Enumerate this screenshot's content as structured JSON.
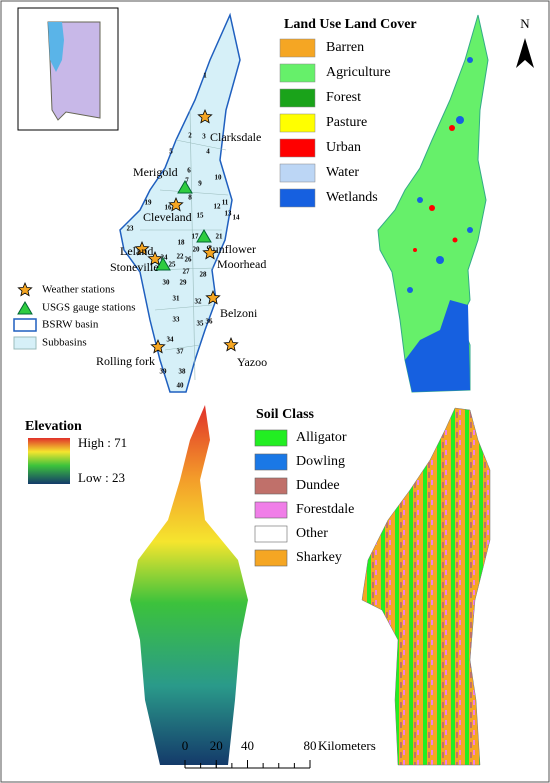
{
  "study_area": {
    "stations": [
      "Clarksdale",
      "Merigold",
      "Cleveland",
      "Sunflower",
      "Leland",
      "Stoneville",
      "Moorhead",
      "Belzoni",
      "Yazoo",
      "Rolling fork"
    ],
    "subbasins": [
      1,
      2,
      3,
      4,
      5,
      6,
      7,
      8,
      9,
      10,
      11,
      12,
      13,
      14,
      15,
      16,
      17,
      18,
      19,
      20,
      21,
      22,
      23,
      24,
      25,
      26,
      27,
      28,
      29,
      30,
      31,
      32,
      33,
      34,
      35,
      36,
      37,
      38,
      39,
      40
    ],
    "legend": [
      "Weather stations",
      "USGS gauge stations",
      "BSRW basin",
      "Subbasins"
    ]
  },
  "land_use": {
    "title": "Land Use Land Cover",
    "classes": [
      {
        "name": "Barren",
        "color": "#f5a623"
      },
      {
        "name": "Agriculture",
        "color": "#66f06a"
      },
      {
        "name": "Forest",
        "color": "#1aa31a"
      },
      {
        "name": "Pasture",
        "color": "#ffff00"
      },
      {
        "name": "Urban",
        "color": "#ff0000"
      },
      {
        "name": "Water",
        "color": "#bcd6f5"
      },
      {
        "name": "Wetlands",
        "color": "#1660e0"
      }
    ]
  },
  "north_arrow": "N",
  "elevation": {
    "title": "Elevation",
    "high": "High : 71",
    "low": "Low : 23"
  },
  "soil": {
    "title": "Soil Class",
    "classes": [
      {
        "name": "Alligator",
        "color": "#22ee22"
      },
      {
        "name": "Dowling",
        "color": "#1a78e6"
      },
      {
        "name": "Dundee",
        "color": "#c0706a"
      },
      {
        "name": "Forestdale",
        "color": "#f07ee8"
      },
      {
        "name": "Other",
        "color": "#ffffff"
      },
      {
        "name": "Sharkey",
        "color": "#f5a623"
      }
    ]
  },
  "scale_bar": {
    "ticks": [
      0,
      20,
      40,
      80
    ],
    "unit": "Kilometers"
  }
}
